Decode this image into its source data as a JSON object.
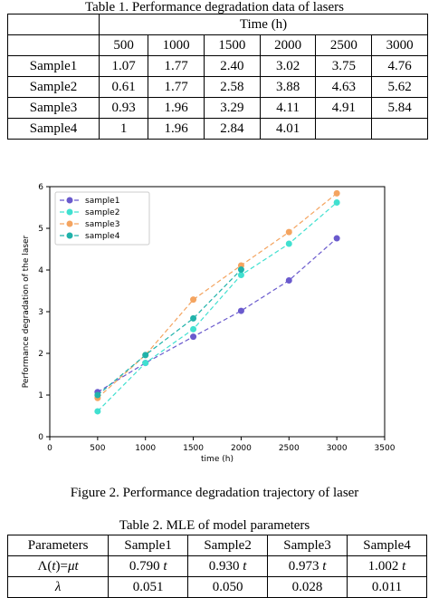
{
  "table1": {
    "caption": "Table 1. Performance degradation data of lasers",
    "time_header": "Time (h)",
    "times": [
      "500",
      "1000",
      "1500",
      "2000",
      "2500",
      "3000"
    ],
    "rows": [
      {
        "label": "Sample1",
        "values": [
          "1.07",
          "1.77",
          "2.40",
          "3.02",
          "3.75",
          "4.76"
        ]
      },
      {
        "label": "Sample2",
        "values": [
          "0.61",
          "1.77",
          "2.58",
          "3.88",
          "4.63",
          "5.62"
        ]
      },
      {
        "label": "Sample3",
        "values": [
          "0.93",
          "1.96",
          "3.29",
          "4.11",
          "4.91",
          "5.84"
        ]
      },
      {
        "label": "Sample4",
        "values": [
          "1",
          "1.96",
          "2.84",
          "4.01",
          "",
          ""
        ]
      }
    ]
  },
  "figure": {
    "caption": "Figure 2. Performance degradation trajectory of laser"
  },
  "chart_data": {
    "type": "line",
    "xlabel": "time  (h)",
    "ylabel": "Performance degradation of the laser",
    "xlim": [
      0,
      3500
    ],
    "ylim": [
      0,
      6
    ],
    "xticks": [
      0,
      500,
      1000,
      1500,
      2000,
      2500,
      3000,
      3500
    ],
    "yticks": [
      0,
      1,
      2,
      3,
      4,
      5,
      6
    ],
    "grid": false,
    "legend_position": "top-left",
    "x": [
      500,
      1000,
      1500,
      2000,
      2500,
      3000
    ],
    "series": [
      {
        "name": "sample1",
        "color": "#6a5acd",
        "values": [
          1.07,
          1.77,
          2.4,
          3.02,
          3.75,
          4.76
        ]
      },
      {
        "name": "sample2",
        "color": "#40e0d0",
        "values": [
          0.61,
          1.77,
          2.58,
          3.88,
          4.63,
          5.62
        ]
      },
      {
        "name": "sample3",
        "color": "#f4a460",
        "values": [
          0.93,
          1.96,
          3.29,
          4.11,
          4.91,
          5.84
        ]
      },
      {
        "name": "sample4",
        "color": "#20b2aa",
        "values": [
          1.0,
          1.96,
          2.84,
          4.01,
          null,
          null
        ]
      }
    ]
  },
  "table2": {
    "caption": "Table 2. MLE of model parameters",
    "headers": [
      "Parameters",
      "Sample1",
      "Sample2",
      "Sample3",
      "Sample4"
    ],
    "row1": {
      "label_lambda": "Λ(",
      "label_t": "t",
      "label_eq": ")=",
      "label_mut": "μt",
      "values": [
        "0.790",
        "0.930",
        "0.973",
        "1.002"
      ],
      "unit": "t"
    },
    "row2": {
      "label": "λ",
      "values": [
        "0.051",
        "0.050",
        "0.028",
        "0.011"
      ]
    }
  }
}
